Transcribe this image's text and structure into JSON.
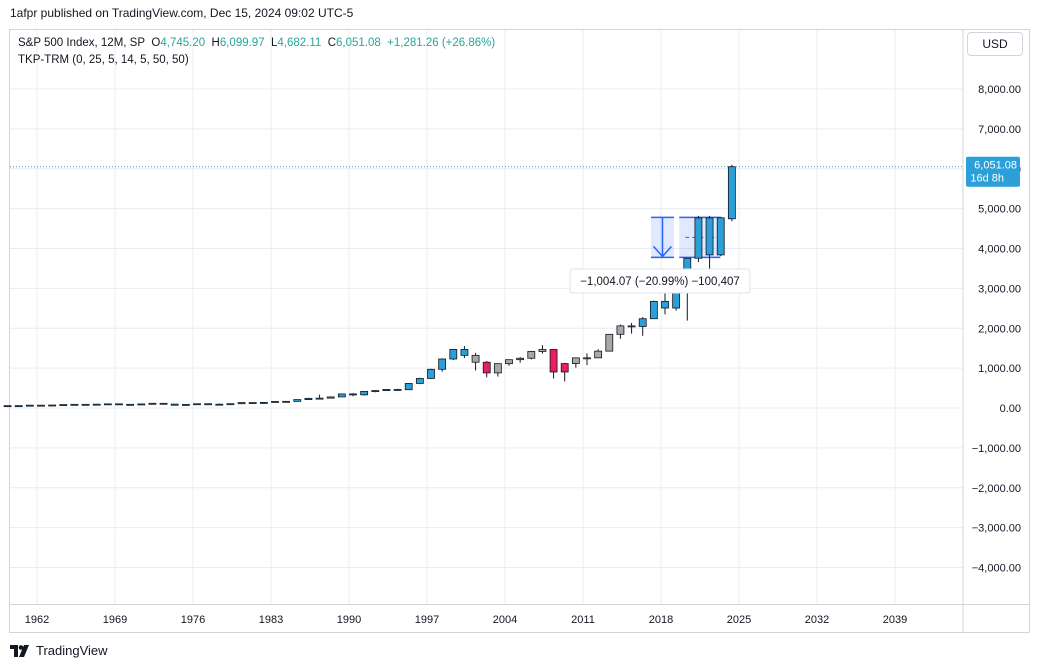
{
  "header": {
    "published": "1afpr published on TradingView.com, Dec 15, 2024 09:02 UTC-5"
  },
  "legend": {
    "symbol": "S&P 500 Index, 12M, SP",
    "o_label": "O",
    "o_value": "4,745.20",
    "h_label": "H",
    "h_value": "6,099.97",
    "l_label": "L",
    "l_value": "4,682.11",
    "c_label": "C",
    "c_value": "6,051.08",
    "change": "+1,281.26 (+26.86%)",
    "indicator": "TKP-TRM  (0, 25, 5, 14, 5, 50, 50)"
  },
  "currency": "USD",
  "price_badge": {
    "price": "6,051.08",
    "countdown": "16d 8h",
    "color": "#2a9fd8"
  },
  "measure": {
    "label": "−1,004.07 (−20.99%) −100,407",
    "from_price": 4780,
    "to_price": 3776,
    "bar_from": 2020,
    "bar_to": 2022.6
  },
  "footer": {
    "brand": "TradingView"
  },
  "colors": {
    "up": "#2a9fd8",
    "down": "#e91e63",
    "neutral": "#a8a8a8",
    "grid": "#e9ecf2",
    "measure": "#2962ff"
  },
  "chart_data": {
    "type": "candlestick",
    "title": "S&P 500 Index, 12M, SP",
    "xlabel": "",
    "ylabel": "USD",
    "ylim": [
      -5000,
      9000
    ],
    "xlim": [
      1959,
      2045
    ],
    "y_ticks": [
      8000,
      7000,
      6000,
      5000,
      4000,
      3000,
      2000,
      1000,
      0,
      -1000,
      -2000,
      -3000,
      -4000
    ],
    "y_tick_labels": [
      "8,000.00",
      "7,000.00",
      "6,000.00",
      "5,000.00",
      "4,000.00",
      "3,000.00",
      "2,000.00",
      "1,000.00",
      "0.00",
      "−1,000.00",
      "−2,000.00",
      "−3,000.00",
      "−4,000.00"
    ],
    "x_ticks": [
      1962,
      1969,
      1976,
      1983,
      1990,
      1997,
      2004,
      2011,
      2018,
      2025,
      2032,
      2039
    ],
    "x_tick_labels": [
      "1962",
      "1969",
      "1976",
      "1983",
      "1990",
      "1997",
      "2004",
      "2011",
      "2018",
      "2025",
      "2032",
      "2039"
    ],
    "last_price": 6051.08,
    "candles": [
      {
        "year": 1959,
        "o": 55,
        "h": 60,
        "l": 53,
        "c": 59,
        "color": "up"
      },
      {
        "year": 1960,
        "o": 59,
        "h": 61,
        "l": 52,
        "c": 58,
        "color": "up"
      },
      {
        "year": 1961,
        "o": 58,
        "h": 73,
        "l": 57,
        "c": 71,
        "color": "up"
      },
      {
        "year": 1962,
        "o": 71,
        "h": 72,
        "l": 52,
        "c": 63,
        "color": "up"
      },
      {
        "year": 1963,
        "o": 63,
        "h": 75,
        "l": 62,
        "c": 75,
        "color": "up"
      },
      {
        "year": 1964,
        "o": 75,
        "h": 87,
        "l": 75,
        "c": 85,
        "color": "up"
      },
      {
        "year": 1965,
        "o": 85,
        "h": 93,
        "l": 81,
        "c": 92,
        "color": "up"
      },
      {
        "year": 1966,
        "o": 92,
        "h": 95,
        "l": 73,
        "c": 80,
        "color": "up"
      },
      {
        "year": 1967,
        "o": 80,
        "h": 98,
        "l": 80,
        "c": 96,
        "color": "up"
      },
      {
        "year": 1968,
        "o": 96,
        "h": 109,
        "l": 87,
        "c": 104,
        "color": "up"
      },
      {
        "year": 1969,
        "o": 104,
        "h": 107,
        "l": 89,
        "c": 92,
        "color": "up"
      },
      {
        "year": 1970,
        "o": 92,
        "h": 94,
        "l": 69,
        "c": 92,
        "color": "up"
      },
      {
        "year": 1971,
        "o": 92,
        "h": 105,
        "l": 90,
        "c": 102,
        "color": "up"
      },
      {
        "year": 1972,
        "o": 102,
        "h": 120,
        "l": 101,
        "c": 118,
        "color": "up"
      },
      {
        "year": 1973,
        "o": 118,
        "h": 121,
        "l": 92,
        "c": 98,
        "color": "up"
      },
      {
        "year": 1974,
        "o": 98,
        "h": 100,
        "l": 62,
        "c": 69,
        "color": "up"
      },
      {
        "year": 1975,
        "o": 69,
        "h": 96,
        "l": 70,
        "c": 90,
        "color": "up"
      },
      {
        "year": 1976,
        "o": 90,
        "h": 108,
        "l": 90,
        "c": 107,
        "color": "up"
      },
      {
        "year": 1977,
        "o": 107,
        "h": 107,
        "l": 90,
        "c": 95,
        "color": "up"
      },
      {
        "year": 1978,
        "o": 95,
        "h": 107,
        "l": 87,
        "c": 96,
        "color": "up"
      },
      {
        "year": 1979,
        "o": 96,
        "h": 111,
        "l": 96,
        "c": 108,
        "color": "up"
      },
      {
        "year": 1980,
        "o": 108,
        "h": 141,
        "l": 98,
        "c": 136,
        "color": "up"
      },
      {
        "year": 1981,
        "o": 136,
        "h": 138,
        "l": 112,
        "c": 122,
        "color": "up"
      },
      {
        "year": 1982,
        "o": 122,
        "h": 143,
        "l": 102,
        "c": 140,
        "color": "up"
      },
      {
        "year": 1983,
        "o": 140,
        "h": 172,
        "l": 138,
        "c": 164,
        "color": "up"
      },
      {
        "year": 1984,
        "o": 164,
        "h": 170,
        "l": 147,
        "c": 167,
        "color": "up"
      },
      {
        "year": 1985,
        "o": 167,
        "h": 212,
        "l": 163,
        "c": 211,
        "color": "up"
      },
      {
        "year": 1986,
        "o": 211,
        "h": 254,
        "l": 203,
        "c": 242,
        "color": "up"
      },
      {
        "year": 1987,
        "o": 242,
        "h": 336,
        "l": 223,
        "c": 247,
        "color": "neutral"
      },
      {
        "year": 1988,
        "o": 247,
        "h": 283,
        "l": 242,
        "c": 278,
        "color": "up"
      },
      {
        "year": 1989,
        "o": 278,
        "h": 360,
        "l": 275,
        "c": 353,
        "color": "up"
      },
      {
        "year": 1990,
        "o": 353,
        "h": 369,
        "l": 295,
        "c": 330,
        "color": "up"
      },
      {
        "year": 1991,
        "o": 330,
        "h": 418,
        "l": 311,
        "c": 417,
        "color": "up"
      },
      {
        "year": 1992,
        "o": 417,
        "h": 442,
        "l": 394,
        "c": 436,
        "color": "up"
      },
      {
        "year": 1993,
        "o": 436,
        "h": 471,
        "l": 429,
        "c": 466,
        "color": "up"
      },
      {
        "year": 1994,
        "o": 466,
        "h": 482,
        "l": 435,
        "c": 459,
        "color": "up"
      },
      {
        "year": 1995,
        "o": 459,
        "h": 622,
        "l": 457,
        "c": 616,
        "color": "up"
      },
      {
        "year": 1996,
        "o": 616,
        "h": 757,
        "l": 597,
        "c": 741,
        "color": "up"
      },
      {
        "year": 1997,
        "o": 741,
        "h": 983,
        "l": 733,
        "c": 970,
        "color": "up"
      },
      {
        "year": 1998,
        "o": 970,
        "h": 1244,
        "l": 912,
        "c": 1229,
        "color": "up"
      },
      {
        "year": 1999,
        "o": 1229,
        "h": 1473,
        "l": 1205,
        "c": 1469,
        "color": "up"
      },
      {
        "year": 2000,
        "o": 1469,
        "h": 1553,
        "l": 1254,
        "c": 1320,
        "color": "up"
      },
      {
        "year": 2001,
        "o": 1320,
        "h": 1383,
        "l": 944,
        "c": 1148,
        "color": "neutral"
      },
      {
        "year": 2002,
        "o": 1148,
        "h": 1176,
        "l": 768,
        "c": 880,
        "color": "down"
      },
      {
        "year": 2003,
        "o": 880,
        "h": 1112,
        "l": 788,
        "c": 1112,
        "color": "neutral"
      },
      {
        "year": 2004,
        "o": 1112,
        "h": 1217,
        "l": 1061,
        "c": 1212,
        "color": "neutral"
      },
      {
        "year": 2005,
        "o": 1212,
        "h": 1275,
        "l": 1137,
        "c": 1248,
        "color": "neutral"
      },
      {
        "year": 2006,
        "o": 1248,
        "h": 1431,
        "l": 1219,
        "c": 1418,
        "color": "neutral"
      },
      {
        "year": 2007,
        "o": 1418,
        "h": 1576,
        "l": 1363,
        "c": 1468,
        "color": "neutral"
      },
      {
        "year": 2008,
        "o": 1468,
        "h": 1471,
        "l": 741,
        "c": 903,
        "color": "down"
      },
      {
        "year": 2009,
        "o": 903,
        "h": 1130,
        "l": 667,
        "c": 1115,
        "color": "down"
      },
      {
        "year": 2010,
        "o": 1115,
        "h": 1263,
        "l": 1011,
        "c": 1258,
        "color": "neutral"
      },
      {
        "year": 2011,
        "o": 1258,
        "h": 1371,
        "l": 1075,
        "c": 1258,
        "color": "neutral"
      },
      {
        "year": 2012,
        "o": 1258,
        "h": 1475,
        "l": 1258,
        "c": 1426,
        "color": "neutral"
      },
      {
        "year": 2013,
        "o": 1426,
        "h": 1849,
        "l": 1426,
        "c": 1848,
        "color": "neutral"
      },
      {
        "year": 2014,
        "o": 1848,
        "h": 2094,
        "l": 1737,
        "c": 2059,
        "color": "neutral"
      },
      {
        "year": 2015,
        "o": 2059,
        "h": 2135,
        "l": 1867,
        "c": 2044,
        "color": "neutral"
      },
      {
        "year": 2016,
        "o": 2044,
        "h": 2277,
        "l": 1810,
        "c": 2239,
        "color": "up"
      },
      {
        "year": 2017,
        "o": 2239,
        "h": 2694,
        "l": 2238,
        "c": 2674,
        "color": "up"
      },
      {
        "year": 2018,
        "o": 2674,
        "h": 2941,
        "l": 2347,
        "c": 2507,
        "color": "up"
      },
      {
        "year": 2019,
        "o": 2507,
        "h": 3247,
        "l": 2444,
        "c": 3231,
        "color": "up"
      },
      {
        "year": 2020,
        "o": 3231,
        "h": 3760,
        "l": 2192,
        "c": 3756,
        "color": "up"
      },
      {
        "year": 2021,
        "o": 3756,
        "h": 4818,
        "l": 3662,
        "c": 4766,
        "color": "up"
      },
      {
        "year": 2022,
        "o": 4766,
        "h": 4818,
        "l": 3492,
        "c": 3840,
        "color": "up"
      },
      {
        "year": 2023,
        "o": 3840,
        "h": 4793,
        "l": 3809,
        "c": 4770,
        "color": "up"
      },
      {
        "year": 2024,
        "o": 4745,
        "h": 6100,
        "l": 4682,
        "c": 6051,
        "color": "up"
      }
    ]
  }
}
